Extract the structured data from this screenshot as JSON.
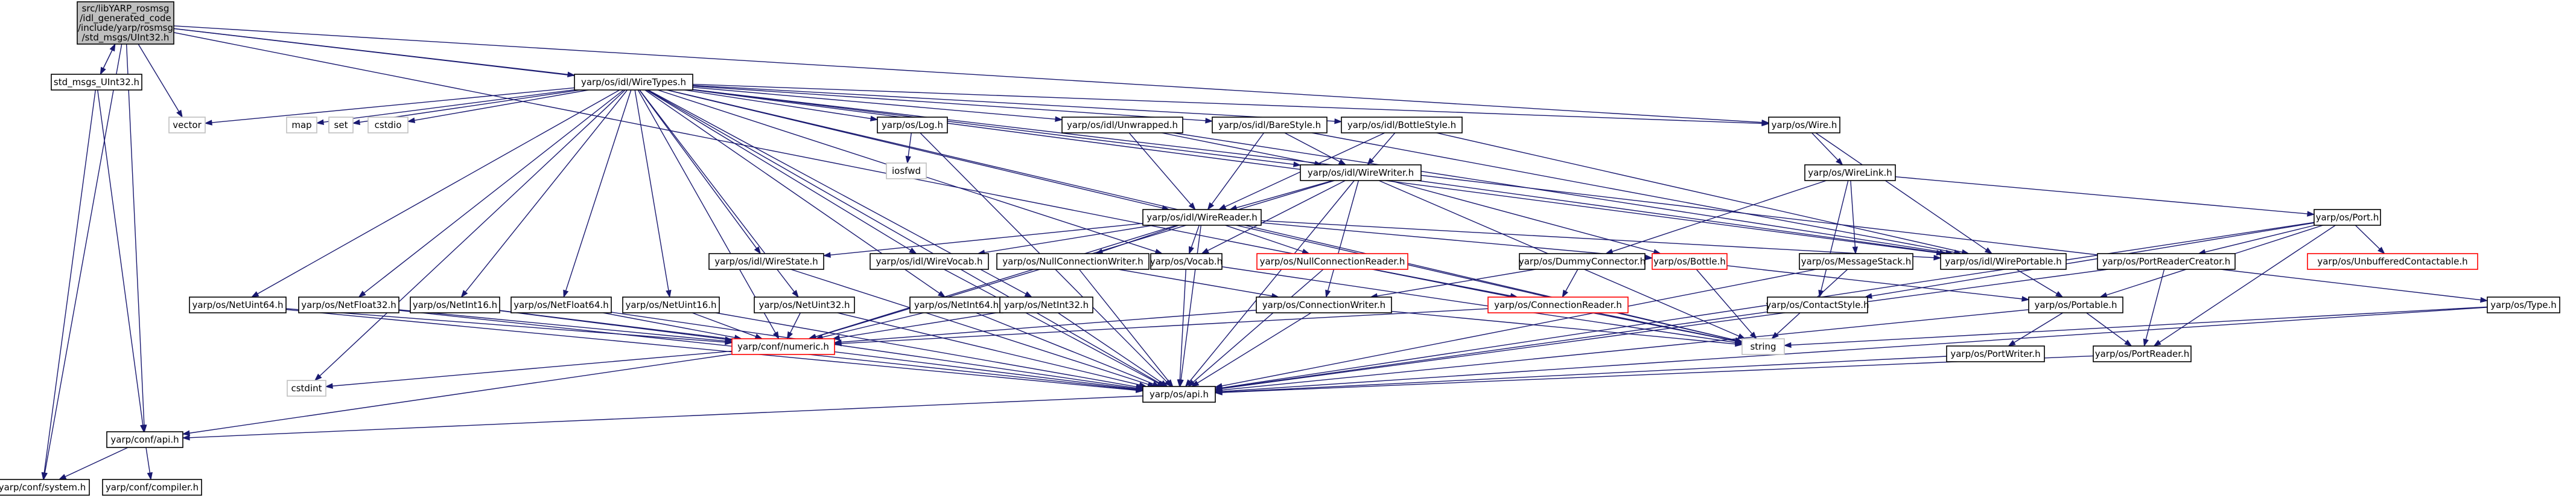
{
  "diagram": {
    "colors": {
      "edge": "#191970",
      "node_border": "#000000",
      "root_fill": "#bfbfbf",
      "missing_border": "#bfbfbf",
      "broken_border": "#ff0000",
      "text": "#000000"
    },
    "nodes": [
      {
        "id": "root",
        "lines": [
          "src/libYARP_rosmsg",
          "/idl_generated_code",
          "/include/yarp/rosmsg",
          "/std_msgs/UInt32.h"
        ],
        "style": "root"
      },
      {
        "id": "su32",
        "lines": [
          "std_msgs_UInt32.h"
        ],
        "style": "normal"
      },
      {
        "id": "cfg_api",
        "lines": [
          "yarp/conf/api.h"
        ],
        "style": "normal"
      },
      {
        "id": "cfg_sys",
        "lines": [
          "yarp/conf/system.h"
        ],
        "style": "normal"
      },
      {
        "id": "cfg_comp",
        "lines": [
          "yarp/conf/compiler.h"
        ],
        "style": "normal"
      },
      {
        "id": "vector",
        "lines": [
          "vector"
        ],
        "style": "missing"
      },
      {
        "id": "wiretypes",
        "lines": [
          "yarp/os/idl/WireTypes.h"
        ],
        "style": "normal"
      },
      {
        "id": "map",
        "lines": [
          "map"
        ],
        "style": "missing"
      },
      {
        "id": "set",
        "lines": [
          "set"
        ],
        "style": "missing"
      },
      {
        "id": "cstdio",
        "lines": [
          "cstdio"
        ],
        "style": "missing"
      },
      {
        "id": "log",
        "lines": [
          "yarp/os/Log.h"
        ],
        "style": "normal"
      },
      {
        "id": "iosfwd",
        "lines": [
          "iosfwd"
        ],
        "style": "missing"
      },
      {
        "id": "unwrapped",
        "lines": [
          "yarp/os/idl/Unwrapped.h"
        ],
        "style": "normal"
      },
      {
        "id": "barestyle",
        "lines": [
          "yarp/os/idl/BareStyle.h"
        ],
        "style": "normal"
      },
      {
        "id": "bottlestyle",
        "lines": [
          "yarp/os/idl/BottleStyle.h"
        ],
        "style": "normal"
      },
      {
        "id": "wire",
        "lines": [
          "yarp/os/Wire.h"
        ],
        "style": "normal"
      },
      {
        "id": "type",
        "lines": [
          "yarp/os/Type.h"
        ],
        "style": "normal"
      },
      {
        "id": "wirewriter",
        "lines": [
          "yarp/os/idl/WireWriter.h"
        ],
        "style": "normal"
      },
      {
        "id": "wirelink",
        "lines": [
          "yarp/os/WireLink.h"
        ],
        "style": "normal"
      },
      {
        "id": "wirereader",
        "lines": [
          "yarp/os/idl/WireReader.h"
        ],
        "style": "normal"
      },
      {
        "id": "port",
        "lines": [
          "yarp/os/Port.h"
        ],
        "style": "normal"
      },
      {
        "id": "wirestate",
        "lines": [
          "yarp/os/idl/WireState.h"
        ],
        "style": "normal"
      },
      {
        "id": "wirevocab",
        "lines": [
          "yarp/os/idl/WireVocab.h"
        ],
        "style": "normal"
      },
      {
        "id": "nullconnwriter",
        "lines": [
          "yarp/os/NullConnectionWriter.h"
        ],
        "style": "normal"
      },
      {
        "id": "vocab",
        "lines": [
          "yarp/os/Vocab.h"
        ],
        "style": "normal"
      },
      {
        "id": "nullconnreader",
        "lines": [
          "yarp/os/NullConnectionReader.h"
        ],
        "style": "broken"
      },
      {
        "id": "dummyconn",
        "lines": [
          "yarp/os/DummyConnector.h"
        ],
        "style": "normal"
      },
      {
        "id": "bottle",
        "lines": [
          "yarp/os/Bottle.h"
        ],
        "style": "broken"
      },
      {
        "id": "msgstack",
        "lines": [
          "yarp/os/MessageStack.h"
        ],
        "style": "normal"
      },
      {
        "id": "wireportable",
        "lines": [
          "yarp/os/idl/WirePortable.h"
        ],
        "style": "normal"
      },
      {
        "id": "portreadercreator",
        "lines": [
          "yarp/os/PortReaderCreator.h"
        ],
        "style": "normal"
      },
      {
        "id": "unbuffered",
        "lines": [
          "yarp/os/UnbufferedContactable.h"
        ],
        "style": "broken"
      },
      {
        "id": "netuint64",
        "lines": [
          "yarp/os/NetUint64.h"
        ],
        "style": "normal"
      },
      {
        "id": "netfloat32",
        "lines": [
          "yarp/os/NetFloat32.h"
        ],
        "style": "normal"
      },
      {
        "id": "netint16",
        "lines": [
          "yarp/os/NetInt16.h"
        ],
        "style": "normal"
      },
      {
        "id": "netfloat64",
        "lines": [
          "yarp/os/NetFloat64.h"
        ],
        "style": "normal"
      },
      {
        "id": "netuint16",
        "lines": [
          "yarp/os/NetUint16.h"
        ],
        "style": "normal"
      },
      {
        "id": "netuint32",
        "lines": [
          "yarp/os/NetUint32.h"
        ],
        "style": "normal"
      },
      {
        "id": "netint64",
        "lines": [
          "yarp/os/NetInt64.h"
        ],
        "style": "normal"
      },
      {
        "id": "netint32",
        "lines": [
          "yarp/os/NetInt32.h"
        ],
        "style": "normal"
      },
      {
        "id": "connwriter",
        "lines": [
          "yarp/os/ConnectionWriter.h"
        ],
        "style": "normal"
      },
      {
        "id": "connreader",
        "lines": [
          "yarp/os/ConnectionReader.h"
        ],
        "style": "broken"
      },
      {
        "id": "contactstyle",
        "lines": [
          "yarp/os/ContactStyle.h"
        ],
        "style": "normal"
      },
      {
        "id": "portable",
        "lines": [
          "yarp/os/Portable.h"
        ],
        "style": "normal"
      },
      {
        "id": "numeric",
        "lines": [
          "yarp/conf/numeric.h"
        ],
        "style": "broken"
      },
      {
        "id": "string",
        "lines": [
          "string"
        ],
        "style": "missing"
      },
      {
        "id": "portwriter",
        "lines": [
          "yarp/os/PortWriter.h"
        ],
        "style": "normal"
      },
      {
        "id": "portreader",
        "lines": [
          "yarp/os/PortReader.h"
        ],
        "style": "normal"
      },
      {
        "id": "cstdint",
        "lines": [
          "cstdint"
        ],
        "style": "missing"
      },
      {
        "id": "os_api",
        "lines": [
          "yarp/os/api.h"
        ],
        "style": "normal"
      }
    ],
    "edges": [
      [
        "root",
        "su32"
      ],
      [
        "su32",
        "root"
      ],
      [
        "root",
        "cfg_api"
      ],
      [
        "root",
        "vector"
      ],
      [
        "root",
        "wiretypes"
      ],
      [
        "root",
        "wire"
      ],
      [
        "root",
        "type"
      ],
      [
        "root",
        "string"
      ],
      [
        "root",
        "cfg_sys"
      ],
      [
        "su32",
        "cfg_api"
      ],
      [
        "su32",
        "cfg_sys"
      ],
      [
        "cfg_api",
        "cfg_sys"
      ],
      [
        "cfg_api",
        "cfg_comp"
      ],
      [
        "wiretypes",
        "vector"
      ],
      [
        "wiretypes",
        "map"
      ],
      [
        "wiretypes",
        "set"
      ],
      [
        "wiretypes",
        "cstdio"
      ],
      [
        "wiretypes",
        "cstdint"
      ],
      [
        "wiretypes",
        "log"
      ],
      [
        "wiretypes",
        "unwrapped"
      ],
      [
        "wiretypes",
        "barestyle"
      ],
      [
        "wiretypes",
        "bottlestyle"
      ],
      [
        "wiretypes",
        "wire"
      ],
      [
        "wiretypes",
        "wirewriter"
      ],
      [
        "wiretypes",
        "wirereader"
      ],
      [
        "wiretypes",
        "wirestate"
      ],
      [
        "wiretypes",
        "wirevocab"
      ],
      [
        "wiretypes",
        "wireportable"
      ],
      [
        "wiretypes",
        "string"
      ],
      [
        "wiretypes",
        "netuint64"
      ],
      [
        "wiretypes",
        "netfloat32"
      ],
      [
        "wiretypes",
        "netint16"
      ],
      [
        "wiretypes",
        "netfloat64"
      ],
      [
        "wiretypes",
        "netuint16"
      ],
      [
        "wiretypes",
        "netuint32"
      ],
      [
        "wiretypes",
        "netint64"
      ],
      [
        "wiretypes",
        "netint32"
      ],
      [
        "wiretypes",
        "numeric"
      ],
      [
        "wiretypes",
        "os_api"
      ],
      [
        "wiretypes",
        "vocab"
      ],
      [
        "log",
        "iosfwd"
      ],
      [
        "log",
        "os_api"
      ],
      [
        "unwrapped",
        "wirereader"
      ],
      [
        "unwrapped",
        "wirewriter"
      ],
      [
        "unwrapped",
        "wireportable"
      ],
      [
        "barestyle",
        "wirereader"
      ],
      [
        "barestyle",
        "wirewriter"
      ],
      [
        "barestyle",
        "wireportable"
      ],
      [
        "bottlestyle",
        "wirereader"
      ],
      [
        "bottlestyle",
        "wirewriter"
      ],
      [
        "bottlestyle",
        "wireportable"
      ],
      [
        "wire",
        "wirelink"
      ],
      [
        "wire",
        "wireportable"
      ],
      [
        "wirelink",
        "port"
      ],
      [
        "wirelink",
        "dummyconn"
      ],
      [
        "wirelink",
        "msgstack"
      ],
      [
        "wirelink",
        "contactstyle"
      ],
      [
        "wirewriter",
        "wirereader"
      ],
      [
        "wirewriter",
        "vocab"
      ],
      [
        "wirewriter",
        "connwriter"
      ],
      [
        "wirewriter",
        "bottle"
      ],
      [
        "wirewriter",
        "wireportable"
      ],
      [
        "wirewriter",
        "string"
      ],
      [
        "wirewriter",
        "os_api"
      ],
      [
        "wirewriter",
        "numeric"
      ],
      [
        "wirereader",
        "wirestate"
      ],
      [
        "wirereader",
        "wirevocab"
      ],
      [
        "wirereader",
        "nullconnwriter"
      ],
      [
        "wirereader",
        "vocab"
      ],
      [
        "wirereader",
        "nullconnreader"
      ],
      [
        "wirereader",
        "bottle"
      ],
      [
        "wirereader",
        "wireportable"
      ],
      [
        "wirereader",
        "string"
      ],
      [
        "wirereader",
        "os_api"
      ],
      [
        "wirereader",
        "numeric"
      ],
      [
        "wirestate",
        "os_api"
      ],
      [
        "wirevocab",
        "os_api"
      ],
      [
        "nullconnwriter",
        "connwriter"
      ],
      [
        "nullconnwriter",
        "os_api"
      ],
      [
        "vocab",
        "os_api"
      ],
      [
        "vocab",
        "string"
      ],
      [
        "nullconnreader",
        "connreader"
      ],
      [
        "nullconnreader",
        "os_api"
      ],
      [
        "dummyconn",
        "connwriter"
      ],
      [
        "dummyconn",
        "connreader"
      ],
      [
        "bottle",
        "portable"
      ],
      [
        "bottle",
        "string"
      ],
      [
        "msgstack",
        "os_api"
      ],
      [
        "msgstack",
        "string"
      ],
      [
        "wireportable",
        "portable"
      ],
      [
        "port",
        "unbuffered"
      ],
      [
        "port",
        "portreadercreator"
      ],
      [
        "port",
        "portable"
      ],
      [
        "port",
        "portreader"
      ],
      [
        "port",
        "os_api"
      ],
      [
        "port",
        "contactstyle"
      ],
      [
        "portreadercreator",
        "portreader"
      ],
      [
        "portreadercreator",
        "os_api"
      ],
      [
        "type",
        "string"
      ],
      [
        "type",
        "os_api"
      ],
      [
        "netuint64",
        "numeric"
      ],
      [
        "netuint64",
        "os_api"
      ],
      [
        "netfloat32",
        "numeric"
      ],
      [
        "netfloat32",
        "os_api"
      ],
      [
        "netint16",
        "numeric"
      ],
      [
        "netint16",
        "os_api"
      ],
      [
        "netfloat64",
        "numeric"
      ],
      [
        "netfloat64",
        "os_api"
      ],
      [
        "netuint16",
        "numeric"
      ],
      [
        "netuint16",
        "os_api"
      ],
      [
        "netuint32",
        "numeric"
      ],
      [
        "netuint32",
        "os_api"
      ],
      [
        "netint64",
        "numeric"
      ],
      [
        "netint64",
        "os_api"
      ],
      [
        "netint32",
        "numeric"
      ],
      [
        "netint32",
        "os_api"
      ],
      [
        "connwriter",
        "numeric"
      ],
      [
        "connwriter",
        "os_api"
      ],
      [
        "connwriter",
        "string"
      ],
      [
        "connreader",
        "numeric"
      ],
      [
        "connreader",
        "string"
      ],
      [
        "contactstyle",
        "os_api"
      ],
      [
        "portable",
        "portwriter"
      ],
      [
        "portable",
        "portreader"
      ],
      [
        "portable",
        "os_api"
      ],
      [
        "portwriter",
        "os_api"
      ],
      [
        "portreader",
        "os_api"
      ],
      [
        "numeric",
        "cstdint"
      ],
      [
        "numeric",
        "cfg_api"
      ],
      [
        "os_api",
        "cfg_api"
      ]
    ]
  }
}
